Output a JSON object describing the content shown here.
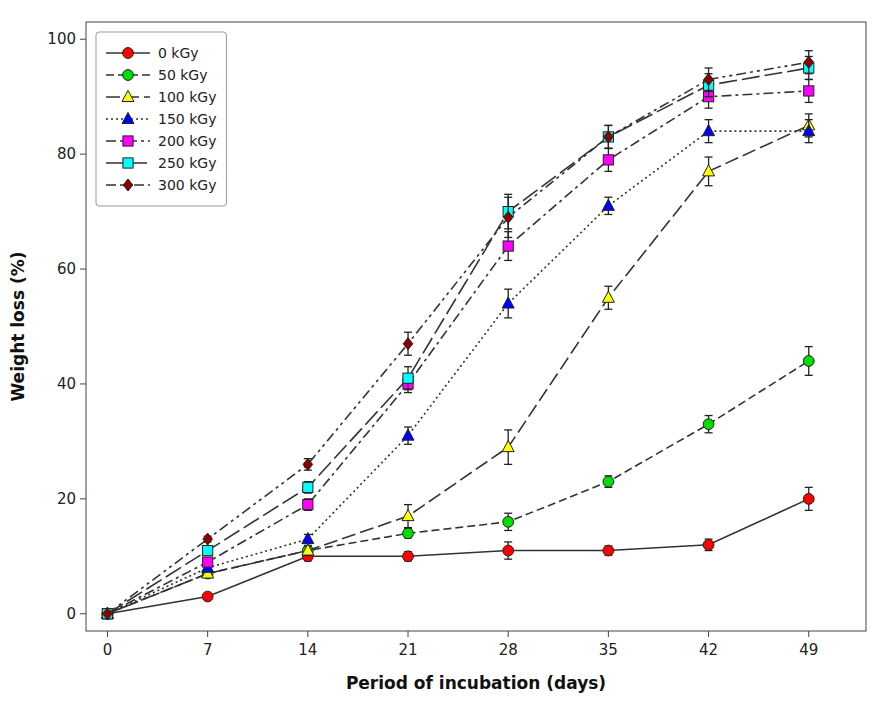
{
  "chart_data": {
    "type": "line",
    "xlabel": "Period of incubation (days)",
    "ylabel": "Weight loss (%)",
    "x": [
      0,
      7,
      14,
      21,
      28,
      35,
      42,
      49
    ],
    "series": [
      {
        "name": "0 kGy",
        "color": "#ff0000",
        "marker": "circle",
        "line_style": "solid",
        "values": [
          0,
          3,
          10,
          10,
          11,
          11,
          12,
          20
        ],
        "errors": [
          0,
          0.5,
          0.8,
          0.8,
          1.5,
          0.8,
          1.0,
          2.0
        ]
      },
      {
        "name": "50 kGy",
        "color": "#00dd00",
        "marker": "circle",
        "line_style": "dashed",
        "values": [
          0,
          7,
          11,
          14,
          16,
          23,
          33,
          44
        ],
        "errors": [
          0,
          0.5,
          0.8,
          0.8,
          1.5,
          1.0,
          1.5,
          2.5
        ]
      },
      {
        "name": "100 kGy",
        "color": "#ffff00",
        "marker": "triangle",
        "line_style": "longdash",
        "values": [
          0,
          7,
          11,
          17,
          29,
          55,
          77,
          85
        ],
        "errors": [
          0,
          0.5,
          0.8,
          2.0,
          3.0,
          2.0,
          2.5,
          2.0
        ]
      },
      {
        "name": "150 kGy",
        "color": "#0000ff",
        "marker": "triangle",
        "line_style": "dotted",
        "values": [
          0,
          8,
          13,
          31,
          54,
          71,
          84,
          84
        ],
        "errors": [
          0,
          0.5,
          0.8,
          1.5,
          2.5,
          1.5,
          2.0,
          2.0
        ]
      },
      {
        "name": "200 kGy",
        "color": "#ff00ff",
        "marker": "square",
        "line_style": "dashdot",
        "values": [
          0,
          9,
          19,
          40,
          64,
          79,
          90,
          91
        ],
        "errors": [
          0,
          0.5,
          1.0,
          1.5,
          2.5,
          2.0,
          2.0,
          2.0
        ]
      },
      {
        "name": "250 kGy",
        "color": "#00ffff",
        "marker": "square",
        "line_style": "longdash2",
        "values": [
          0,
          11,
          22,
          41,
          70,
          83,
          92,
          95
        ],
        "errors": [
          0,
          0.5,
          1.0,
          2.0,
          3.0,
          2.0,
          2.0,
          2.0
        ]
      },
      {
        "name": "300 kGy",
        "color": "#8b0000",
        "marker": "diamond",
        "line_style": "dashdotdot",
        "values": [
          0,
          13,
          26,
          47,
          69,
          83,
          93,
          96
        ],
        "errors": [
          0,
          0.5,
          1.0,
          2.0,
          3.5,
          2.0,
          2.0,
          2.0
        ]
      }
    ],
    "xlim": [
      -1.5,
      53
    ],
    "ylim": [
      -3,
      103
    ],
    "xticks": [
      0,
      7,
      14,
      21,
      28,
      35,
      42,
      49
    ],
    "yticks": [
      0,
      20,
      40,
      60,
      80,
      100
    ],
    "legend": "upper left",
    "grid": false
  }
}
